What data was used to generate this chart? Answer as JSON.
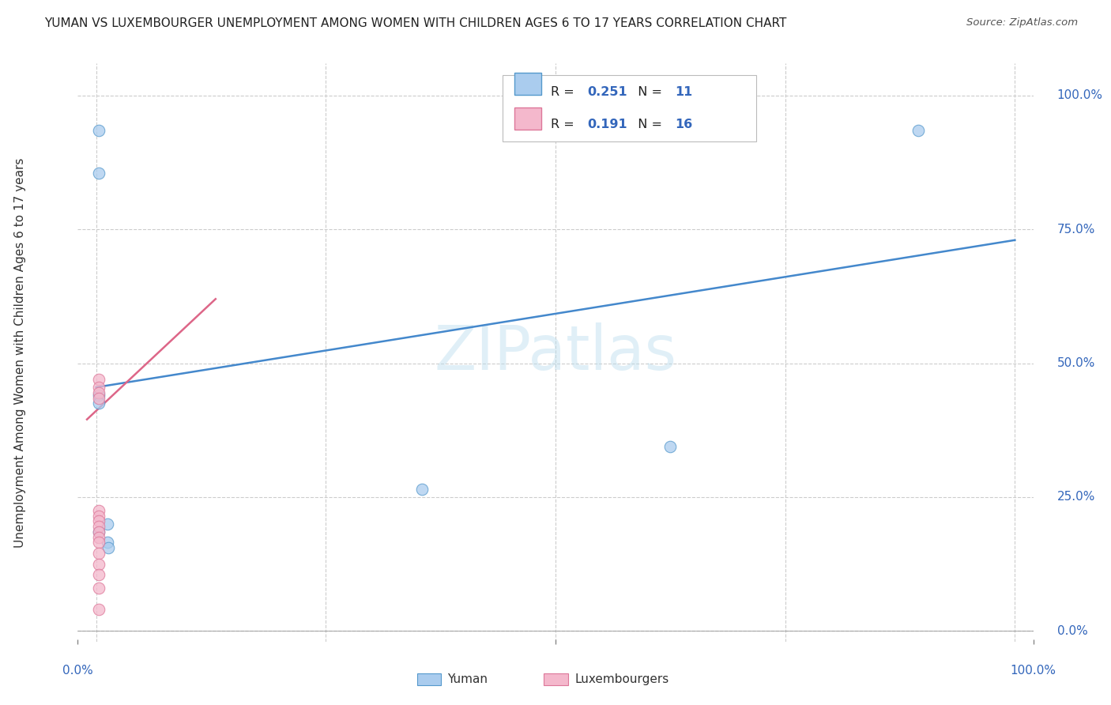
{
  "title": "YUMAN VS LUXEMBOURGER UNEMPLOYMENT AMONG WOMEN WITH CHILDREN AGES 6 TO 17 YEARS CORRELATION CHART",
  "source": "Source: ZipAtlas.com",
  "ylabel": "Unemployment Among Women with Children Ages 6 to 17 years",
  "watermark": "ZIPatlas",
  "legend_blue_R": "0.251",
  "legend_blue_N": "11",
  "legend_pink_R": "0.191",
  "legend_pink_N": "16",
  "legend_blue_label": "Yuman",
  "legend_pink_label": "Luxembourgers",
  "ytick_labels": [
    "0.0%",
    "25.0%",
    "50.0%",
    "75.0%",
    "100.0%"
  ],
  "ytick_values": [
    0.0,
    0.25,
    0.5,
    0.75,
    1.0
  ],
  "xtick_labels": [
    "0.0%",
    "100.0%"
  ],
  "xtick_values": [
    0.0,
    1.0
  ],
  "xlim": [
    -0.02,
    1.02
  ],
  "ylim": [
    -0.02,
    1.06
  ],
  "blue_fill": "#aaccee",
  "pink_fill": "#f4b8cc",
  "blue_edge": "#5599cc",
  "pink_edge": "#dd7799",
  "blue_line_color": "#4488cc",
  "pink_line_color": "#dd6688",
  "grid_color": "#cccccc",
  "title_color": "#222222",
  "axis_tick_color": "#3366bb",
  "blue_scatter_x": [
    0.003,
    0.003,
    0.003,
    0.003,
    0.003,
    0.012,
    0.012,
    0.013,
    0.355,
    0.895,
    0.625
  ],
  "blue_scatter_y": [
    0.935,
    0.855,
    0.44,
    0.425,
    0.185,
    0.2,
    0.165,
    0.155,
    0.265,
    0.935,
    0.345
  ],
  "pink_scatter_x": [
    0.003,
    0.003,
    0.003,
    0.003,
    0.003,
    0.003,
    0.003,
    0.003,
    0.003,
    0.003,
    0.003,
    0.003,
    0.003,
    0.003,
    0.003,
    0.003
  ],
  "pink_scatter_y": [
    0.47,
    0.455,
    0.445,
    0.435,
    0.225,
    0.215,
    0.205,
    0.195,
    0.185,
    0.175,
    0.165,
    0.145,
    0.125,
    0.105,
    0.08,
    0.04
  ],
  "blue_line_x": [
    0.0,
    1.0
  ],
  "blue_line_y": [
    0.455,
    0.73
  ],
  "pink_line_x": [
    -0.01,
    0.13
  ],
  "pink_line_y": [
    0.395,
    0.62
  ],
  "marker_size": 110,
  "marker_linewidth": 0.8,
  "marker_alpha": 0.75
}
